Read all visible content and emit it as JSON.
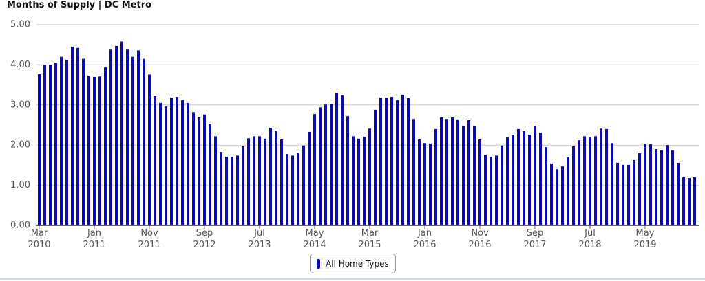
{
  "chart_data": {
    "type": "bar",
    "title": "Months of Supply | DC Metro",
    "categories": [
      "Mar\n2010",
      null,
      null,
      null,
      null,
      null,
      null,
      null,
      null,
      null,
      "Jan\n2011",
      null,
      null,
      null,
      null,
      null,
      null,
      null,
      null,
      null,
      "Nov\n2011",
      null,
      null,
      null,
      null,
      null,
      null,
      null,
      null,
      null,
      "Sep\n2012",
      null,
      null,
      null,
      null,
      null,
      null,
      null,
      null,
      null,
      "Jul\n2013",
      null,
      null,
      null,
      null,
      null,
      null,
      null,
      null,
      null,
      "May\n2014",
      null,
      null,
      null,
      null,
      null,
      null,
      null,
      null,
      null,
      "Mar\n2015",
      null,
      null,
      null,
      null,
      null,
      null,
      null,
      null,
      null,
      "Jan\n2016",
      null,
      null,
      null,
      null,
      null,
      null,
      null,
      null,
      null,
      "Nov\n2016",
      null,
      null,
      null,
      null,
      null,
      null,
      null,
      null,
      null,
      "Sep\n2017",
      null,
      null,
      null,
      null,
      null,
      null,
      null,
      null,
      null,
      "Jul\n2018",
      null,
      null,
      null,
      null,
      null,
      null,
      null,
      null,
      null,
      "May\n2019",
      null,
      null,
      null,
      null,
      null,
      null,
      null,
      null,
      null
    ],
    "series": [
      {
        "name": "All Home Types",
        "color": "#0b0bb0",
        "values": [
          3.77,
          4.0,
          4.0,
          4.05,
          4.2,
          4.12,
          4.45,
          4.42,
          4.15,
          3.73,
          3.7,
          3.71,
          3.94,
          4.38,
          4.47,
          4.58,
          4.38,
          4.2,
          4.36,
          4.15,
          3.76,
          3.22,
          3.05,
          2.96,
          3.18,
          3.2,
          3.12,
          3.05,
          2.82,
          2.69,
          2.76,
          2.52,
          2.22,
          1.83,
          1.71,
          1.71,
          1.74,
          1.97,
          2.17,
          2.22,
          2.22,
          2.16,
          2.43,
          2.36,
          2.14,
          1.78,
          1.74,
          1.81,
          1.99,
          2.33,
          2.77,
          2.94,
          3.01,
          3.03,
          3.3,
          3.24,
          2.72,
          2.22,
          2.16,
          2.21,
          2.41,
          2.88,
          3.18,
          3.18,
          3.2,
          3.12,
          3.25,
          3.17,
          2.65,
          2.14,
          2.05,
          2.04,
          2.4,
          2.69,
          2.65,
          2.69,
          2.64,
          2.47,
          2.62,
          2.47,
          2.14,
          1.76,
          1.71,
          1.74,
          1.99,
          2.19,
          2.26,
          2.4,
          2.35,
          2.26,
          2.48,
          2.31,
          1.95,
          1.54,
          1.4,
          1.47,
          1.71,
          1.97,
          2.12,
          2.22,
          2.19,
          2.22,
          2.41,
          2.4,
          2.05,
          1.56,
          1.51,
          1.51,
          1.63,
          1.8,
          2.02,
          2.02,
          1.9,
          1.87,
          2.0,
          1.87,
          1.56,
          1.2,
          1.18,
          1.2
        ]
      }
    ],
    "ylim": [
      0,
      5
    ],
    "yticks": [
      {
        "value": 0,
        "label": "0.00"
      },
      {
        "value": 1,
        "label": "1.00"
      },
      {
        "value": 2,
        "label": "2.00"
      },
      {
        "value": 3,
        "label": "3.00"
      },
      {
        "value": 4,
        "label": "4.00"
      },
      {
        "value": 5,
        "label": "5.00"
      }
    ],
    "grid": true
  }
}
